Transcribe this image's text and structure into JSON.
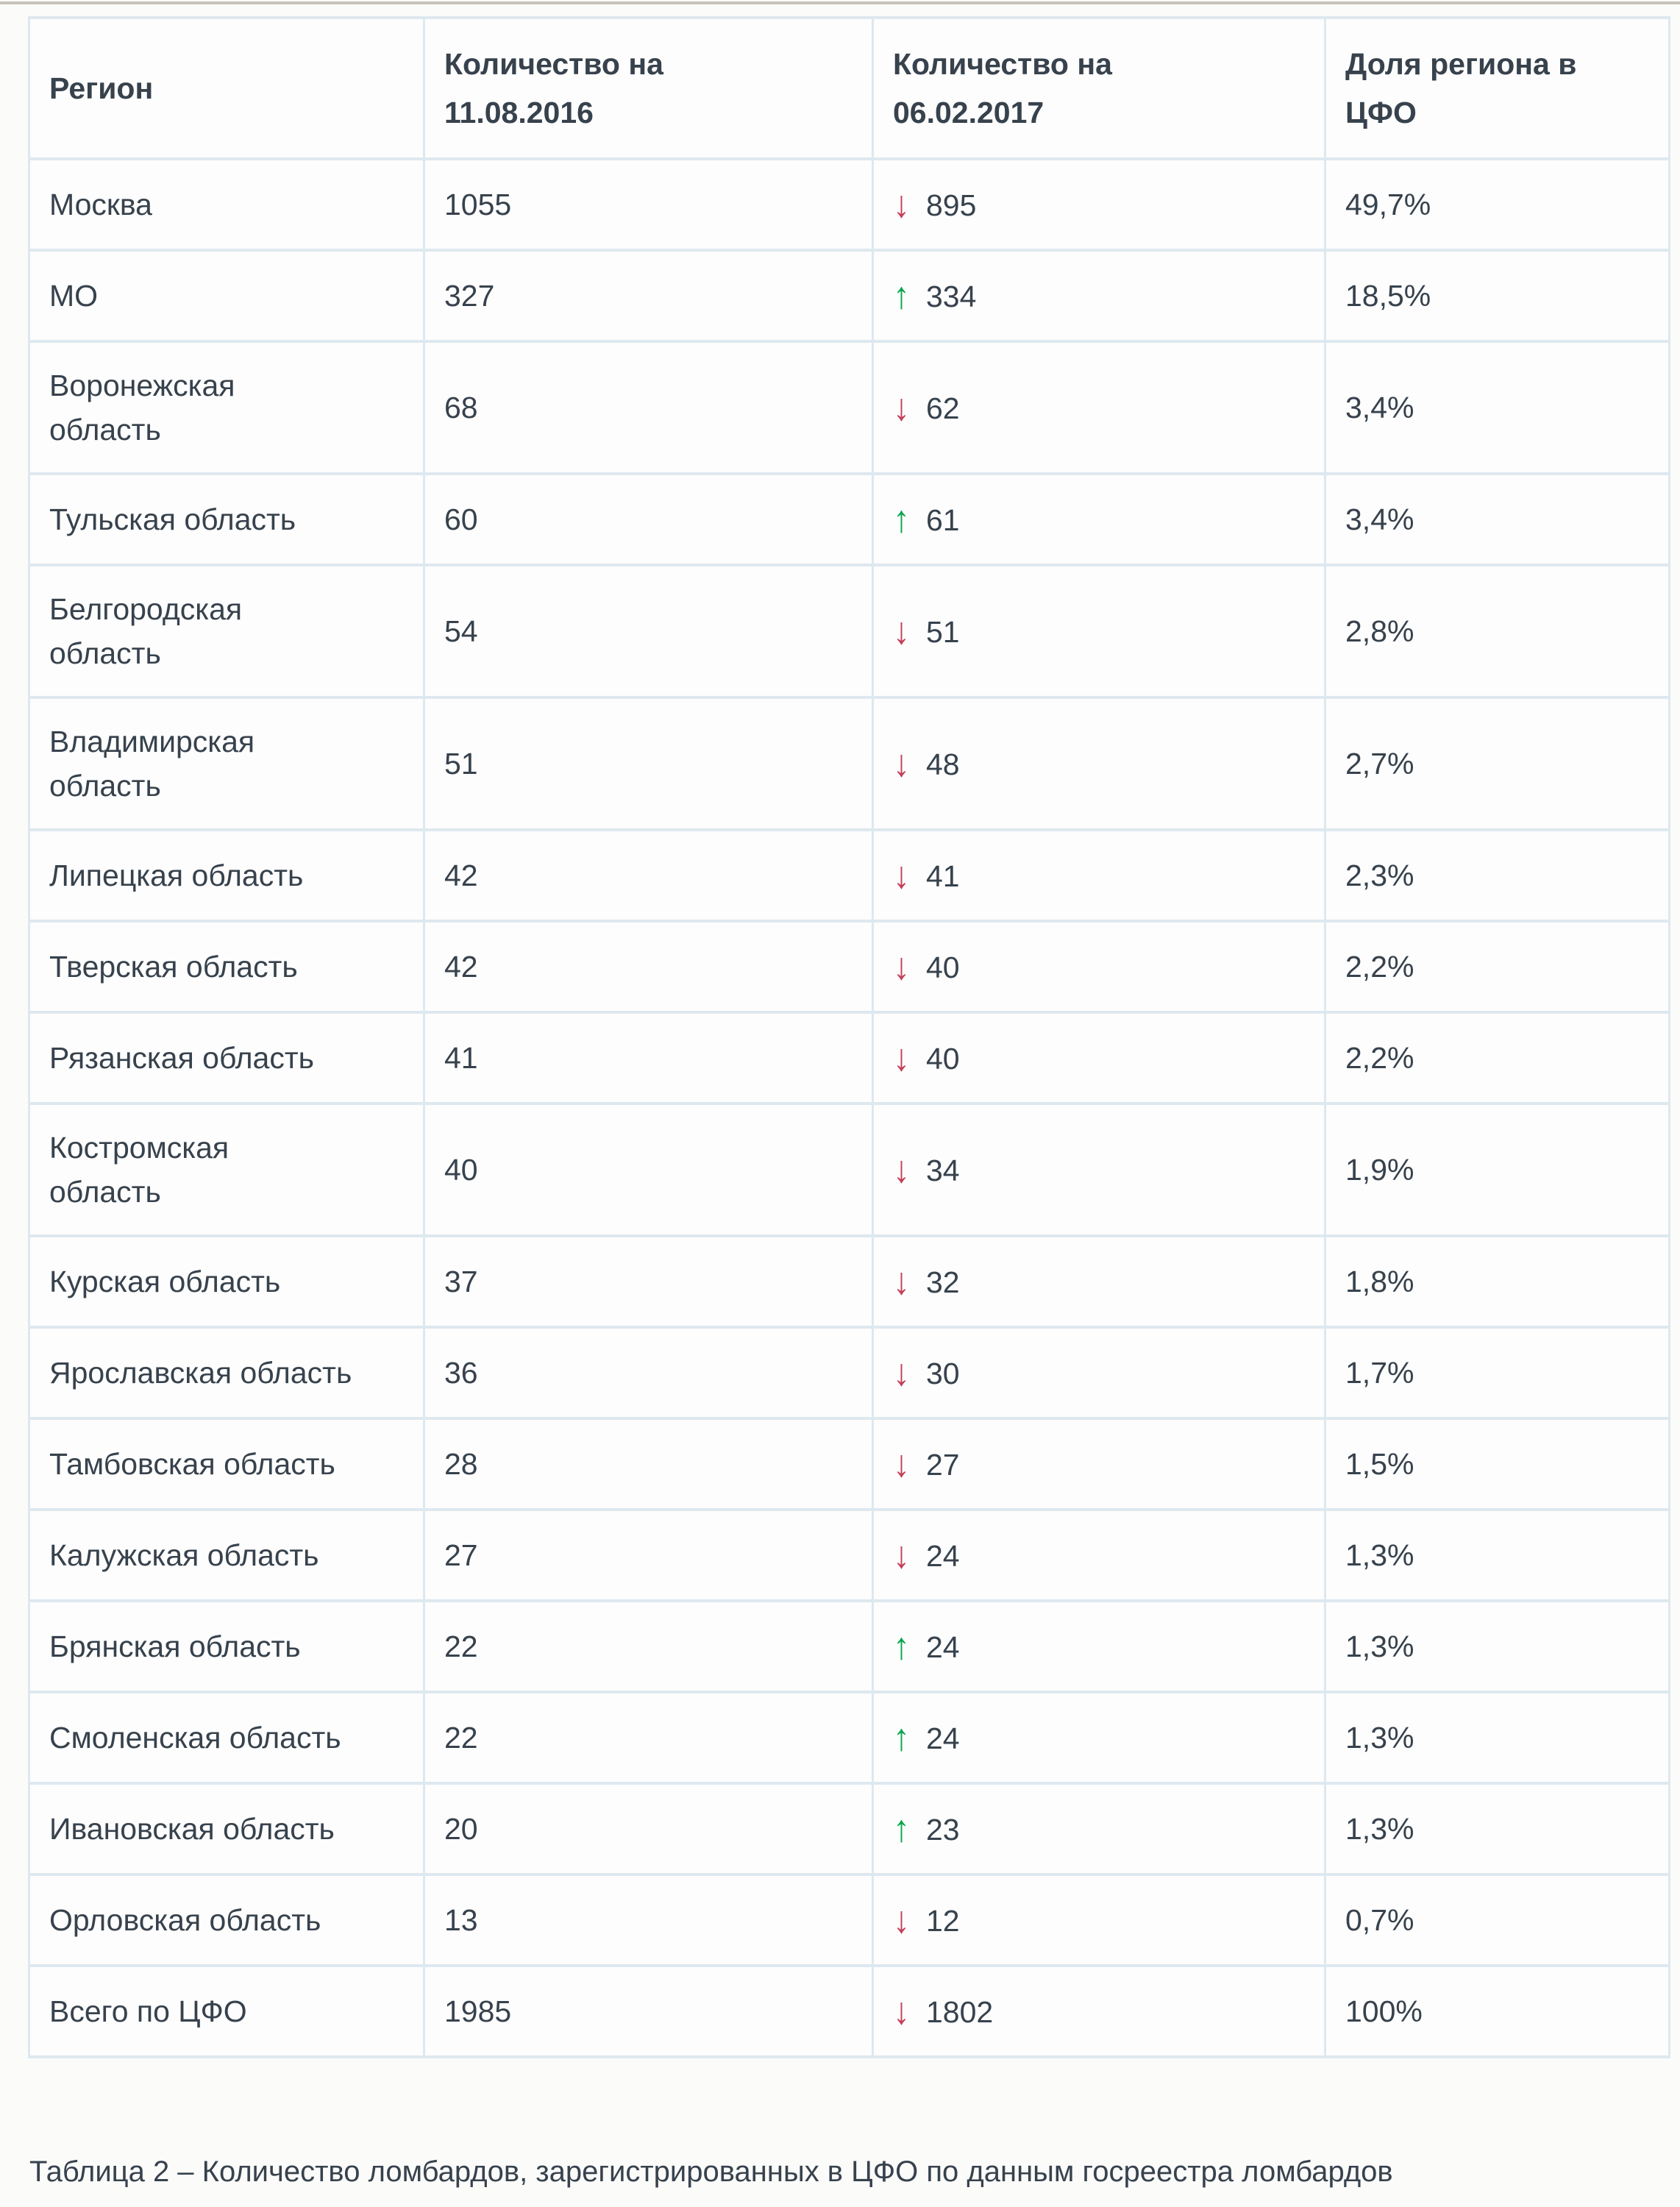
{
  "colors": {
    "up": "#0aa64f",
    "down": "#c43f58",
    "text": "#37424d",
    "border": "#dee8ef"
  },
  "icons": {
    "up": "↑",
    "down": "↓"
  },
  "table": {
    "headers": [
      "Регион",
      "Количество на\n11.08.2016",
      "Количество на\n06.02.2017",
      "Доля региона в\nЦФО"
    ],
    "rows": [
      {
        "region": "Москва",
        "count_2016": "1055",
        "trend": "down",
        "count_2017": "895",
        "share": "49,7%"
      },
      {
        "region": "МО",
        "count_2016": "327",
        "trend": "up",
        "count_2017": "334",
        "share": "18,5%"
      },
      {
        "region": "Воронежская\nобласть",
        "count_2016": "68",
        "trend": "down",
        "count_2017": "62",
        "share": "3,4%"
      },
      {
        "region": "Тульская область",
        "count_2016": "60",
        "trend": "up",
        "count_2017": "61",
        "share": "3,4%"
      },
      {
        "region": "Белгородская\nобласть",
        "count_2016": "54",
        "trend": "down",
        "count_2017": "51",
        "share": "2,8%"
      },
      {
        "region": "Владимирская\nобласть",
        "count_2016": "51",
        "trend": "down",
        "count_2017": "48",
        "share": "2,7%"
      },
      {
        "region": "Липецкая область",
        "count_2016": "42",
        "trend": "down",
        "count_2017": "41",
        "share": "2,3%"
      },
      {
        "region": "Тверская область",
        "count_2016": "42",
        "trend": "down",
        "count_2017": "40",
        "share": "2,2%"
      },
      {
        "region": "Рязанская область",
        "count_2016": "41",
        "trend": "down",
        "count_2017": "40",
        "share": "2,2%"
      },
      {
        "region": "Костромская\nобласть",
        "count_2016": "40",
        "trend": "down",
        "count_2017": "34",
        "share": "1,9%"
      },
      {
        "region": "Курская область",
        "count_2016": "37",
        "trend": "down",
        "count_2017": "32",
        "share": "1,8%"
      },
      {
        "region": "Ярославская область",
        "count_2016": "36",
        "trend": "down",
        "count_2017": "30",
        "share": "1,7%"
      },
      {
        "region": "Тамбовская область",
        "count_2016": "28",
        "trend": "down",
        "count_2017": "27",
        "share": "1,5%"
      },
      {
        "region": "Калужская область",
        "count_2016": "27",
        "trend": "down",
        "count_2017": "24",
        "share": "1,3%"
      },
      {
        "region": "Брянская область",
        "count_2016": "22",
        "trend": "up",
        "count_2017": "24",
        "share": "1,3%"
      },
      {
        "region": "Смоленская область",
        "count_2016": "22",
        "trend": "up",
        "count_2017": "24",
        "share": "1,3%"
      },
      {
        "region": "Ивановская область",
        "count_2016": "20",
        "trend": "up",
        "count_2017": "23",
        "share": "1,3%"
      },
      {
        "region": "Орловская область",
        "count_2016": "13",
        "trend": "down",
        "count_2017": "12",
        "share": "0,7%"
      },
      {
        "region": "Всего по ЦФО",
        "count_2016": "1985",
        "trend": "down",
        "count_2017": "1802",
        "share": "100%"
      }
    ]
  },
  "caption": "Таблица 2 – Количество ломбардов, зарегистрированных в ЦФО по данным госреестра ломбардов",
  "chart_data": {
    "type": "table",
    "title": "Таблица 2 – Количество ломбардов, зарегистрированных в ЦФО по данным госреестра ломбардов",
    "columns": [
      "Регион",
      "Количество на 11.08.2016",
      "Количество на 06.02.2017",
      "Доля региона в ЦФО"
    ],
    "rows": [
      [
        "Москва",
        1055,
        895,
        "49,7%",
        "down"
      ],
      [
        "МО",
        327,
        334,
        "18,5%",
        "up"
      ],
      [
        "Воронежская область",
        68,
        62,
        "3,4%",
        "down"
      ],
      [
        "Тульская область",
        60,
        61,
        "3,4%",
        "up"
      ],
      [
        "Белгородская область",
        54,
        51,
        "2,8%",
        "down"
      ],
      [
        "Владимирская область",
        51,
        48,
        "2,7%",
        "down"
      ],
      [
        "Липецкая область",
        42,
        41,
        "2,3%",
        "down"
      ],
      [
        "Тверская область",
        42,
        40,
        "2,2%",
        "down"
      ],
      [
        "Рязанская область",
        41,
        40,
        "2,2%",
        "down"
      ],
      [
        "Костромская область",
        40,
        34,
        "1,9%",
        "down"
      ],
      [
        "Курская область",
        37,
        32,
        "1,8%",
        "down"
      ],
      [
        "Ярославская область",
        36,
        30,
        "1,7%",
        "down"
      ],
      [
        "Тамбовская область",
        28,
        27,
        "1,5%",
        "down"
      ],
      [
        "Калужская область",
        27,
        24,
        "1,3%",
        "down"
      ],
      [
        "Брянская область",
        22,
        24,
        "1,3%",
        "up"
      ],
      [
        "Смоленская область",
        22,
        24,
        "1,3%",
        "up"
      ],
      [
        "Ивановская область",
        20,
        23,
        "1,3%",
        "up"
      ],
      [
        "Орловская область",
        13,
        12,
        "0,7%",
        "down"
      ],
      [
        "Всего по ЦФО",
        1985,
        1802,
        "100%",
        "down"
      ]
    ]
  }
}
